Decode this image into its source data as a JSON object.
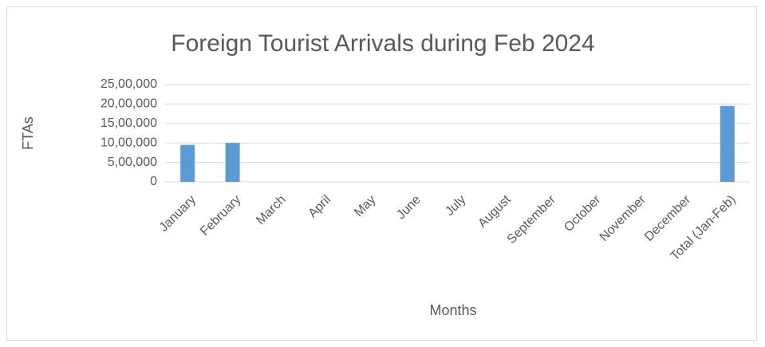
{
  "chart_data": {
    "type": "bar",
    "title": "Foreign Tourist Arrivals during Feb 2024",
    "x_label": "Months",
    "y_label": "FTAs",
    "categories": [
      "January",
      "February",
      "March",
      "April",
      "May",
      "June",
      "July",
      "August",
      "September",
      "October",
      "November",
      "December",
      "Total (Jan-Feb)"
    ],
    "values": [
      950000,
      1000000,
      null,
      null,
      null,
      null,
      null,
      null,
      null,
      null,
      null,
      null,
      1950000
    ],
    "color": "#5b9bd5",
    "ylim": [
      0,
      2500000
    ],
    "yticks": [
      0,
      {
        "value": 500000,
        "label": "5,00,000"
      },
      {
        "value": 1000000,
        "label": "10,00,000"
      },
      {
        "value": 1500000,
        "label": "15,00,000"
      },
      {
        "value": 2000000,
        "label": "20,00,000"
      },
      {
        "value": 2500000,
        "label": "25,00,000"
      }
    ],
    "grid": true
  }
}
